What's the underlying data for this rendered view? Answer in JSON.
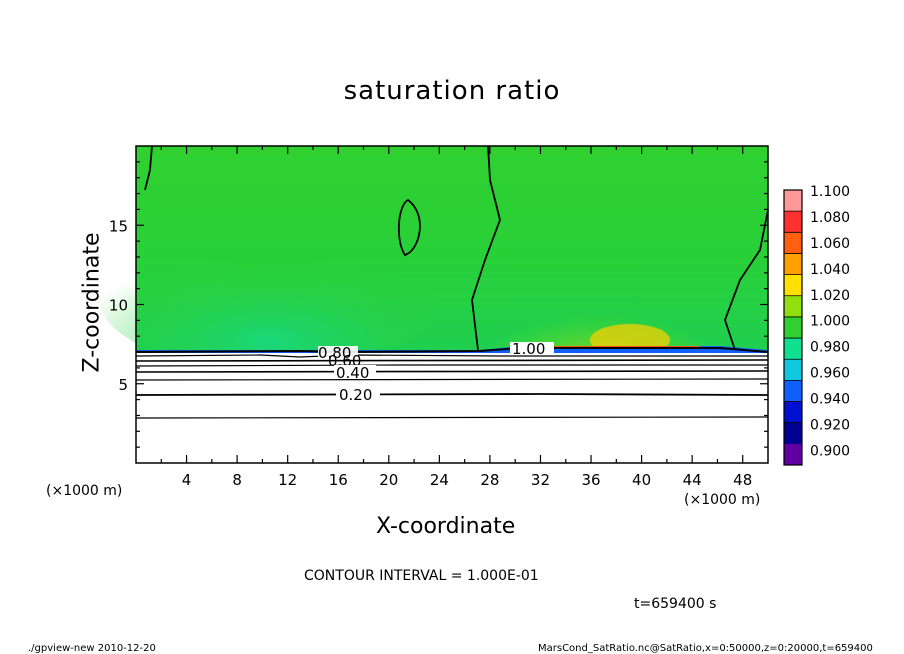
{
  "chart_data": {
    "type": "heatmap",
    "title": "saturation ratio",
    "xlabel": "X-coordinate",
    "ylabel": "Z-coordinate",
    "x_unit_label": "(×1000 m)",
    "y_unit_label": "(×1000 m)",
    "xlim": [
      0,
      50
    ],
    "ylim": [
      0,
      20
    ],
    "x_ticks": [
      4,
      8,
      12,
      16,
      20,
      24,
      28,
      32,
      36,
      40,
      44,
      48
    ],
    "y_ticks": [
      5,
      10,
      15
    ],
    "contour_labels": [
      {
        "text": "1.00",
        "x": 32,
        "z": 7.1
      },
      {
        "text": "0.80",
        "x": 15.5,
        "z": 6.8
      },
      {
        "text": "0.60",
        "x": 16,
        "z": 6.2
      },
      {
        "text": "0.40",
        "x": 17,
        "z": 5.5
      },
      {
        "text": "0.20",
        "x": 17,
        "z": 4.2
      }
    ],
    "colorbar": {
      "levels": [
        "1.100",
        "1.080",
        "1.060",
        "1.040",
        "1.020",
        "1.000",
        "0.980",
        "0.960",
        "0.940",
        "0.920",
        "0.900"
      ],
      "colors": [
        "#ff9999",
        "#ff3030",
        "#ff6010",
        "#ffa000",
        "#ffe000",
        "#90e010",
        "#30d030",
        "#10e090",
        "#10c8e0",
        "#1060ff",
        "#0010d0",
        "#000090",
        "#6000a0"
      ]
    },
    "contour_interval_text": "CONTOUR INTERVAL = 1.000E-01",
    "time_text": "t=659400 s"
  },
  "footer": {
    "left": "./gpview-new   2010-12-20",
    "right": "MarsCond_SatRatio.nc@SatRatio,x=0:50000,z=0:20000,t=659400"
  }
}
